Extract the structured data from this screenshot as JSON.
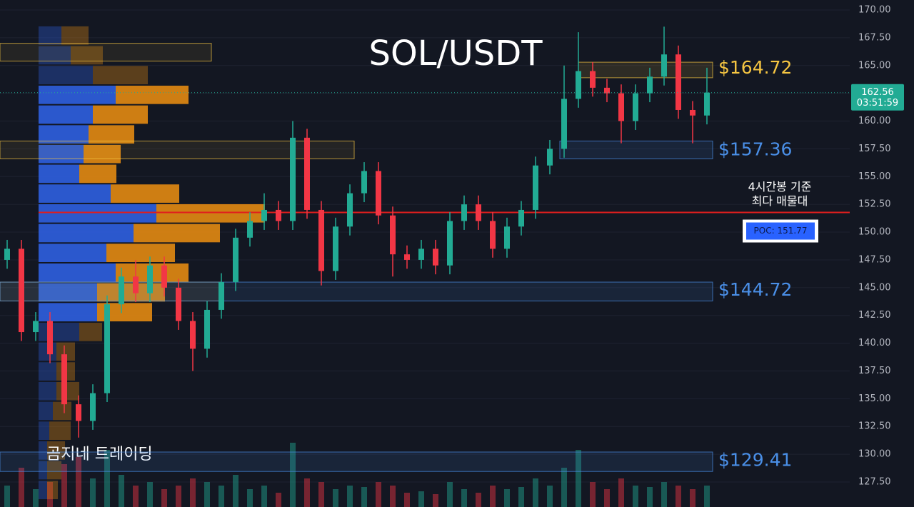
{
  "chart_data": {
    "type": "candlestick",
    "title": "SOL/USDT",
    "watermark": "곰지네 트레이딩",
    "countdown": "03:51:59",
    "up_color": "#22ab94",
    "down_color": "#f23645",
    "ylim": [
      125.25,
      170.9
    ],
    "yticks": [
      {
        "value": 127.5,
        "label": "127.50"
      },
      {
        "value": 130,
        "label": "130.00"
      },
      {
        "value": 132.5,
        "label": "132.50"
      },
      {
        "value": 135,
        "label": "135.00"
      },
      {
        "value": 137.5,
        "label": "137.50"
      },
      {
        "value": 140,
        "label": "140.00"
      },
      {
        "value": 142.5,
        "label": "142.50"
      },
      {
        "value": 145,
        "label": "145.00"
      },
      {
        "value": 147.5,
        "label": "147.50"
      },
      {
        "value": 150,
        "label": "150.00"
      },
      {
        "value": 152.5,
        "label": "152.50"
      },
      {
        "value": 155,
        "label": "155.00"
      },
      {
        "value": 157.5,
        "label": "157.50"
      },
      {
        "value": 160,
        "label": "160.00"
      },
      {
        "value": 162.5,
        "label": "162.50"
      },
      {
        "value": 165,
        "label": "165.00"
      },
      {
        "value": 167.5,
        "label": "167.50"
      },
      {
        "value": 170,
        "label": "170.00"
      }
    ],
    "open": [
      147.5,
      148.5,
      141.0,
      142.0,
      139.0,
      134.5,
      133.0,
      135.5,
      143.5,
      146.0,
      144.5,
      147.0,
      145.0,
      142.0,
      139.5,
      143.0,
      145.5,
      149.5,
      151.0,
      152.0,
      151.0,
      158.5,
      152.0,
      146.5,
      150.5,
      153.5,
      155.5,
      151.5,
      148.0,
      147.5,
      148.5,
      147.0,
      151.0,
      152.5,
      151.0,
      148.5,
      150.5,
      152.0,
      156.0,
      157.5,
      162.0,
      164.5,
      163.0,
      162.5,
      160.0,
      162.5,
      164.0,
      166.0,
      161.0,
      160.5
    ],
    "high": [
      149.3,
      149.3,
      142.8,
      142.8,
      139.8,
      135.3,
      136.3,
      144.3,
      146.8,
      147.5,
      147.8,
      147.8,
      145.8,
      142.8,
      143.8,
      146.3,
      150.3,
      151.8,
      153.5,
      152.8,
      160.0,
      159.3,
      152.8,
      151.3,
      154.3,
      156.3,
      156.3,
      152.3,
      148.8,
      149.3,
      149.3,
      151.8,
      153.3,
      153.3,
      151.8,
      151.3,
      152.8,
      156.8,
      158.3,
      165.0,
      168.0,
      165.3,
      163.8,
      163.3,
      163.3,
      164.8,
      168.5,
      166.8,
      161.8,
      164.8
    ],
    "low": [
      146.7,
      140.2,
      140.2,
      138.2,
      133.7,
      131.5,
      132.2,
      134.7,
      142.7,
      143.7,
      143.7,
      144.2,
      141.2,
      137.5,
      138.7,
      142.2,
      144.7,
      148.7,
      150.2,
      150.2,
      150.2,
      151.2,
      145.2,
      145.7,
      149.7,
      152.7,
      150.7,
      146.0,
      146.7,
      146.7,
      146.2,
      146.2,
      150.2,
      150.2,
      147.7,
      147.7,
      149.7,
      151.2,
      155.2,
      156.7,
      161.2,
      162.2,
      161.7,
      158.0,
      159.2,
      161.7,
      163.2,
      160.2,
      158.0,
      159.7
    ],
    "close": [
      148.5,
      141.0,
      142.0,
      139.0,
      134.5,
      133.0,
      135.5,
      143.5,
      146.0,
      144.5,
      147.0,
      145.0,
      142.0,
      139.5,
      143.0,
      145.5,
      149.5,
      151.0,
      152.0,
      151.0,
      158.5,
      152.0,
      146.5,
      150.5,
      153.5,
      155.5,
      151.5,
      148.0,
      147.5,
      148.5,
      147.0,
      151.0,
      152.5,
      151.0,
      148.5,
      150.5,
      152.0,
      156.0,
      157.5,
      162.0,
      164.5,
      163.0,
      162.5,
      160.0,
      162.5,
      164.0,
      166.0,
      161.0,
      160.5,
      162.56
    ],
    "volume": [
      30,
      55,
      25,
      35,
      60,
      70,
      40,
      80,
      45,
      30,
      35,
      25,
      30,
      40,
      35,
      30,
      45,
      25,
      30,
      20,
      90,
      40,
      35,
      25,
      30,
      28,
      35,
      30,
      20,
      22,
      18,
      35,
      25,
      20,
      30,
      25,
      28,
      40,
      30,
      55,
      80,
      35,
      25,
      40,
      30,
      28,
      35,
      30,
      25,
      30
    ],
    "poc": {
      "value": 151.77,
      "label": "POC: 151.77",
      "note": [
        "4시간봉 기준",
        "최다 매물대"
      ],
      "color": "#e01e1e"
    },
    "profile": {
      "buy_color": "#2f5fe0",
      "sell_color": "#e38a12",
      "prices": [
        167.7,
        165.92,
        164.14,
        162.36,
        160.58,
        158.8,
        157.03,
        155.25,
        153.47,
        151.69,
        149.91,
        148.13,
        146.35,
        144.57,
        142.79,
        141.01,
        139.24,
        137.46,
        135.68,
        133.9,
        132.12,
        130.34,
        128.56,
        126.78
      ],
      "buy": [
        32,
        45,
        76,
        108,
        76,
        70,
        63,
        57,
        101,
        165,
        133,
        95,
        108,
        82,
        82,
        57,
        25,
        25,
        25,
        20,
        15,
        12,
        12,
        12
      ],
      "sell": [
        38,
        45,
        77,
        102,
        77,
        64,
        52,
        52,
        96,
        152,
        121,
        96,
        102,
        95,
        77,
        32,
        26,
        26,
        32,
        26,
        30,
        25,
        20,
        15
      ]
    },
    "zones": [
      {
        "value": 164.72,
        "label": "$164.72",
        "top": 165.3,
        "bottom": 163.9,
        "from": 40.5,
        "color": "#f5c542"
      },
      {
        "value": 157.36,
        "label": "$157.36",
        "top": 158.2,
        "bottom": 156.6,
        "from": 39.2,
        "color": "#4a8fe7"
      },
      {
        "value": 144.72,
        "label": "$144.72",
        "top": 145.5,
        "bottom": 143.8,
        "from": 0,
        "color": "#4a8fe7"
      },
      {
        "value": 129.41,
        "label": "$129.41",
        "top": 130.2,
        "bottom": 128.45,
        "from": 0,
        "color": "#4a8fe7"
      }
    ],
    "boxes": [
      {
        "top": 167.0,
        "bottom": 165.4,
        "from": 0,
        "to": 14.8,
        "color": "#f5c542"
      },
      {
        "top": 158.2,
        "bottom": 156.6,
        "from": 0,
        "to": 24.8,
        "color": "#f5c542"
      },
      {
        "top": 145.5,
        "bottom": 143.8,
        "from": 0,
        "to": 15.5,
        "color": "#f5c542"
      }
    ]
  }
}
